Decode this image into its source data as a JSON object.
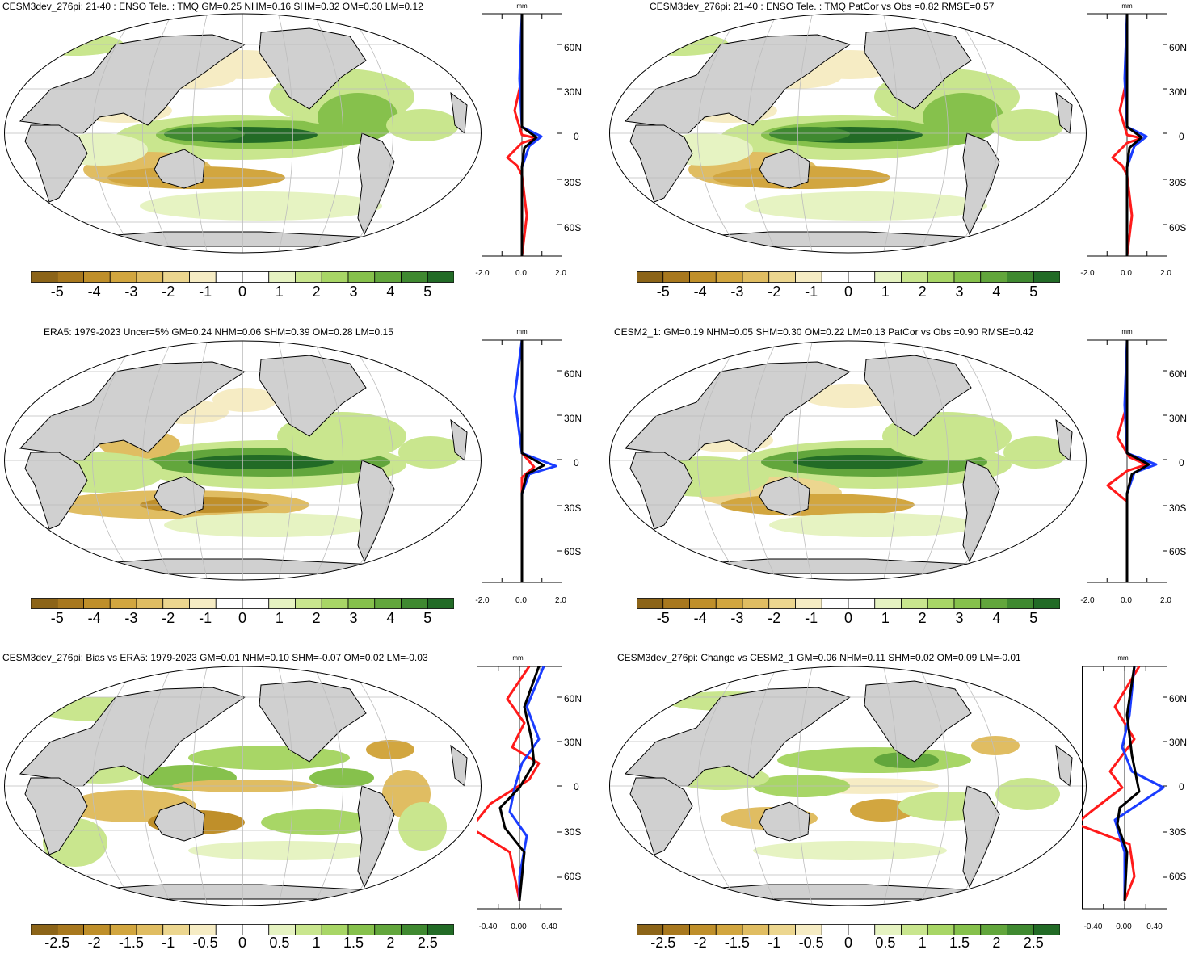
{
  "colors": {
    "land": "#d0d0d0",
    "ocean": "#ffffff",
    "grid": "#bdbdbd",
    "model_line": "#ff1a1a",
    "obs_line": "#1a3cff",
    "mean_line": "#000000",
    "scale": [
      "#8c6418",
      "#a8781e",
      "#bf8f2a",
      "#d2a63f",
      "#e0bd62",
      "#ecd68f",
      "#f6ecc4",
      "#ffffff",
      "#ffffff",
      "#e6f3c2",
      "#c9e68e",
      "#a8d666",
      "#86c14c",
      "#62a63c",
      "#3f8930",
      "#226b26"
    ]
  },
  "panels": [
    {
      "id": "model",
      "title": "CESM3dev_276pi: 21-40 : ENSO Tele. : TMQ GM=0.25 NHM=0.16 SHM=0.32 OM=0.30 LM=0.12",
      "unit": "mm",
      "ylabels": [
        "60N",
        "30N",
        "0",
        "30S",
        "60S"
      ],
      "xlabels": [
        "-2.0",
        "0.0",
        "2.0"
      ],
      "colorbar_labels": [
        "-5",
        "-4",
        "-3",
        "-2",
        "-1",
        "0",
        "1",
        "2",
        "3",
        "4",
        "5"
      ]
    },
    {
      "id": "model_patcor",
      "title": "CESM3dev_276pi: 21-40 : ENSO Tele. : TMQ PatCor vs Obs =0.82 RMSE=0.57",
      "unit": "mm",
      "ylabels": [
        "60N",
        "30N",
        "0",
        "30S",
        "60S"
      ],
      "xlabels": [
        "-2.0",
        "0.0",
        "2.0"
      ],
      "colorbar_labels": [
        "-5",
        "-4",
        "-3",
        "-2",
        "-1",
        "0",
        "1",
        "2",
        "3",
        "4",
        "5"
      ]
    },
    {
      "id": "era5",
      "title": "ERA5: 1979-2023 Uncer=5% GM=0.24 NHM=0.06 SHM=0.39 OM=0.28 LM=0.15",
      "unit": "mm",
      "ylabels": [
        "60N",
        "30N",
        "0",
        "30S",
        "60S"
      ],
      "xlabels": [
        "-2.0",
        "0.0",
        "2.0"
      ],
      "colorbar_labels": [
        "-5",
        "-4",
        "-3",
        "-2",
        "-1",
        "0",
        "1",
        "2",
        "3",
        "4",
        "5"
      ]
    },
    {
      "id": "cesm2",
      "title": "CESM2_1: GM=0.19 NHM=0.05 SHM=0.30 OM=0.22 LM=0.13 PatCor vs Obs =0.90 RMSE=0.42",
      "unit": "mm",
      "ylabels": [
        "60N",
        "30N",
        "0",
        "30S",
        "60S"
      ],
      "xlabels": [
        "-2.0",
        "0.0",
        "2.0"
      ],
      "colorbar_labels": [
        "-5",
        "-4",
        "-3",
        "-2",
        "-1",
        "0",
        "1",
        "2",
        "3",
        "4",
        "5"
      ]
    },
    {
      "id": "bias",
      "title": "CESM3dev_276pi: Bias vs ERA5: 1979-2023 GM=0.01 NHM=0.10 SHM=-0.07 OM=0.02 LM=-0.03",
      "unit": "mm",
      "ylabels": [
        "60N",
        "30N",
        "0",
        "30S",
        "60S"
      ],
      "xlabels": [
        "-0.40",
        "0.00",
        "0.40"
      ],
      "colorbar_labels": [
        "-2.5",
        "-2",
        "-1.5",
        "-1",
        "-0.5",
        "0",
        "0.5",
        "1",
        "1.5",
        "2",
        "2.5"
      ]
    },
    {
      "id": "change",
      "title": "CESM3dev_276pi: Change vs CESM2_1 GM=0.06 NHM=0.11 SHM=0.02 OM=0.09 LM=-0.01",
      "unit": "mm",
      "ylabels": [
        "60N",
        "30N",
        "0",
        "30S",
        "60S"
      ],
      "xlabels": [
        "-0.40",
        "0.00",
        "0.40"
      ],
      "colorbar_labels": [
        "-2.5",
        "-2",
        "-1.5",
        "-1",
        "-0.5",
        "0",
        "0.5",
        "1",
        "1.5",
        "2",
        "2.5"
      ]
    }
  ]
}
